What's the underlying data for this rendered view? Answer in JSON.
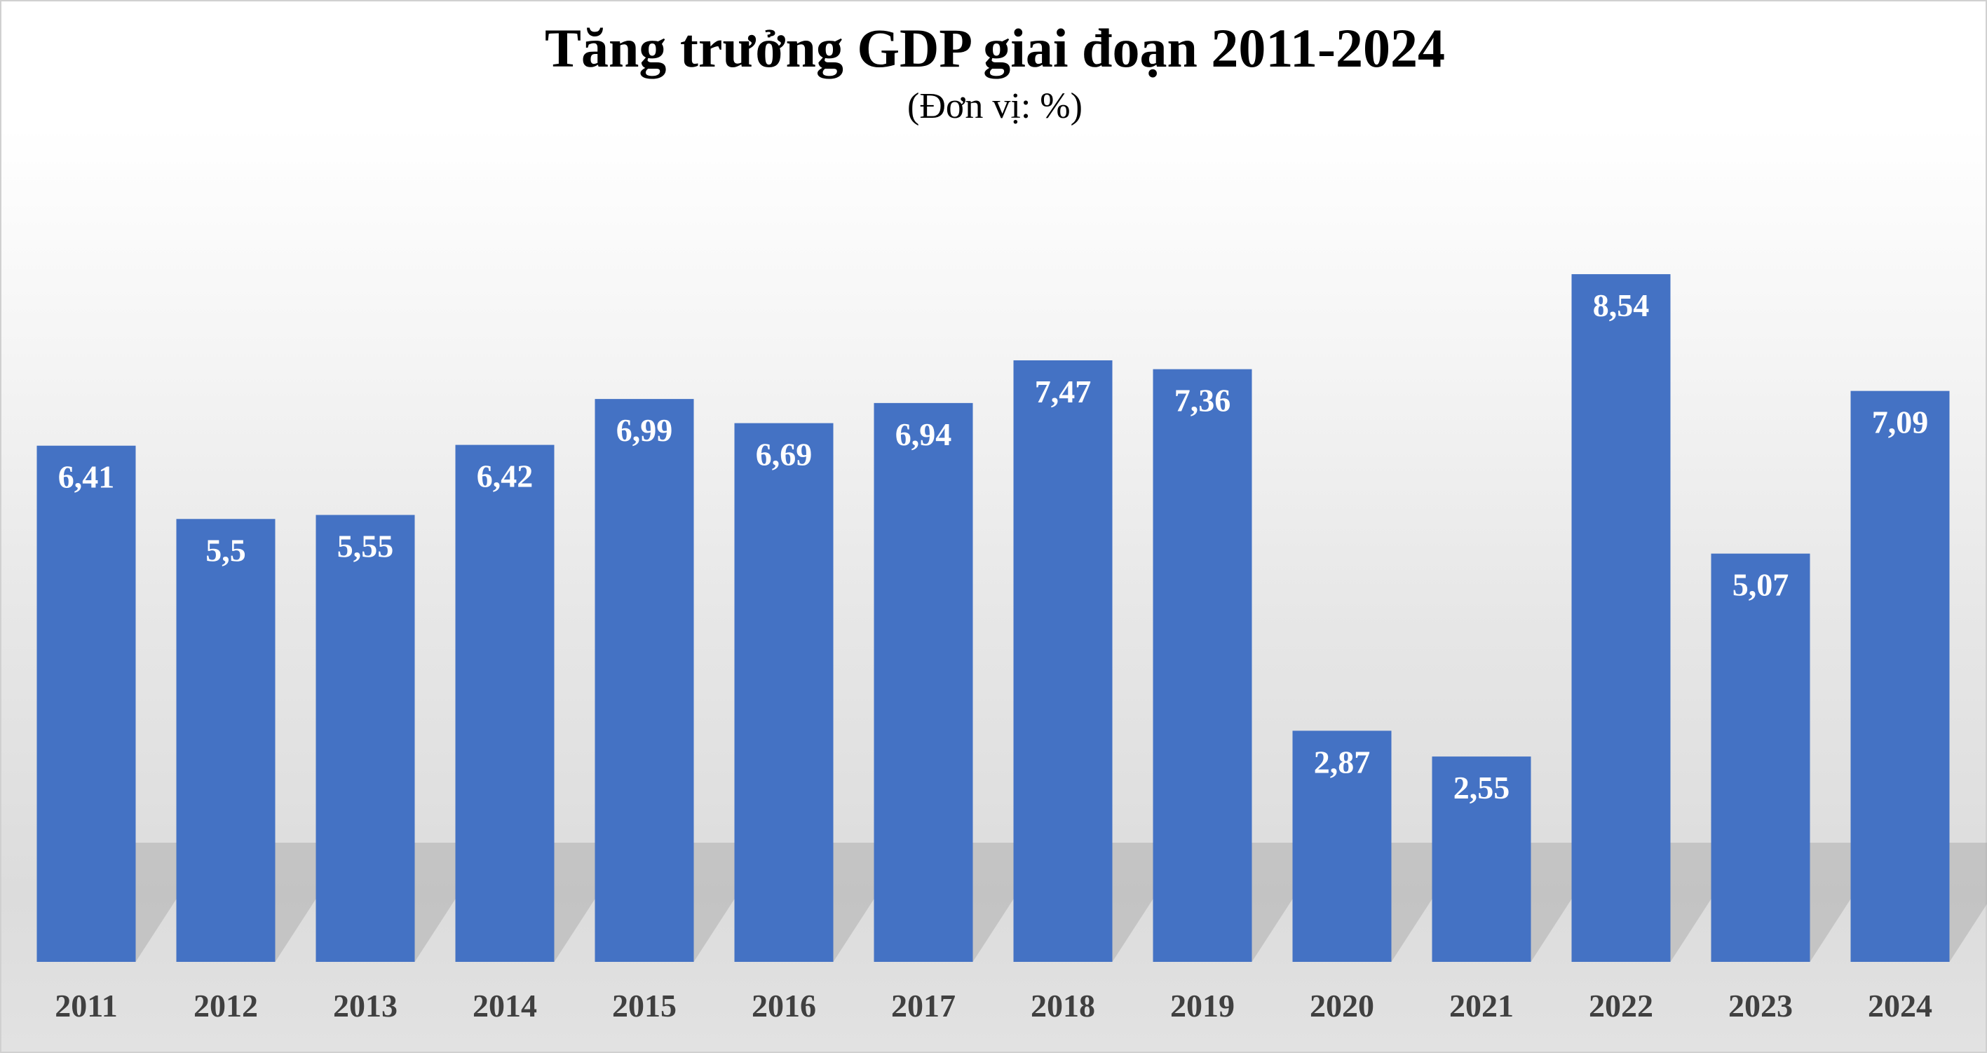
{
  "chart_data": {
    "type": "bar",
    "title": "Tăng trưởng GDP giai đoạn 2011-2024",
    "subtitle": "(Đơn vị: %)",
    "xlabel": "",
    "ylabel": "",
    "categories": [
      "2011",
      "2012",
      "2013",
      "2014",
      "2015",
      "2016",
      "2017",
      "2018",
      "2019",
      "2020",
      "2021",
      "2022",
      "2023",
      "2024"
    ],
    "values": [
      6.41,
      5.5,
      5.55,
      6.42,
      6.99,
      6.69,
      6.94,
      7.47,
      7.36,
      2.87,
      2.55,
      8.54,
      5.07,
      7.09
    ],
    "data_labels": [
      "6,41",
      "5,5",
      "5,55",
      "6,42",
      "6,99",
      "6,69",
      "6,94",
      "7,47",
      "7,36",
      "2,87",
      "2,55",
      "8,54",
      "5,07",
      "7,09"
    ],
    "ylim": [
      0,
      10.9
    ],
    "grid": false,
    "legend": "none",
    "bar_color": "#4472c4"
  }
}
